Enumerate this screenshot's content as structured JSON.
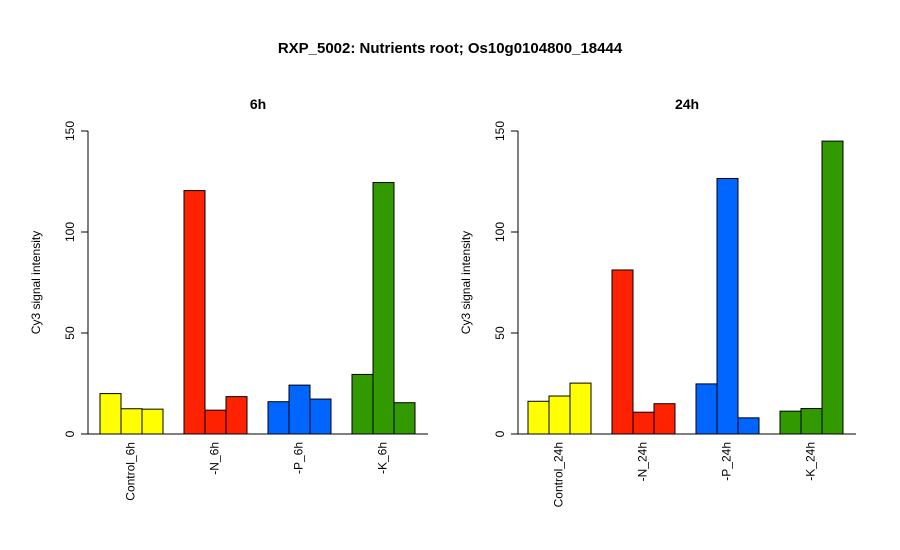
{
  "figure": {
    "title": "RXP_5002: Nutrients root; Os10g0104800_18444"
  },
  "chart_data": [
    {
      "type": "bar",
      "title": "6h",
      "ylabel": "Cy3 signal intensity",
      "xlabel": "",
      "ylim": [
        0,
        150
      ],
      "yticks": [
        0,
        50,
        100,
        150
      ],
      "categories": [
        "Control_6h",
        "-N_6h",
        "-P_6h",
        "-K_6h"
      ],
      "group_colors": [
        "#ffff00",
        "#ff2200",
        "#0066ff",
        "#339900"
      ],
      "values": [
        [
          20,
          12.5,
          12.3
        ],
        [
          120.5,
          11.8,
          18.5
        ],
        [
          16,
          24.2,
          17.3
        ],
        [
          29.5,
          124.5,
          15.5
        ]
      ]
    },
    {
      "type": "bar",
      "title": "24h",
      "ylabel": "Cy3 signal intensity",
      "xlabel": "",
      "ylim": [
        0,
        150
      ],
      "yticks": [
        0,
        50,
        100,
        150
      ],
      "categories": [
        "Control_24h",
        "-N_24h",
        "-P_24h",
        "-K_24h"
      ],
      "group_colors": [
        "#ffff00",
        "#ff2200",
        "#0066ff",
        "#339900"
      ],
      "values": [
        [
          16.2,
          18.8,
          25.2
        ],
        [
          81.2,
          10.8,
          15
        ],
        [
          24.8,
          126.5,
          8
        ],
        [
          11.3,
          12.6,
          145
        ]
      ]
    }
  ]
}
